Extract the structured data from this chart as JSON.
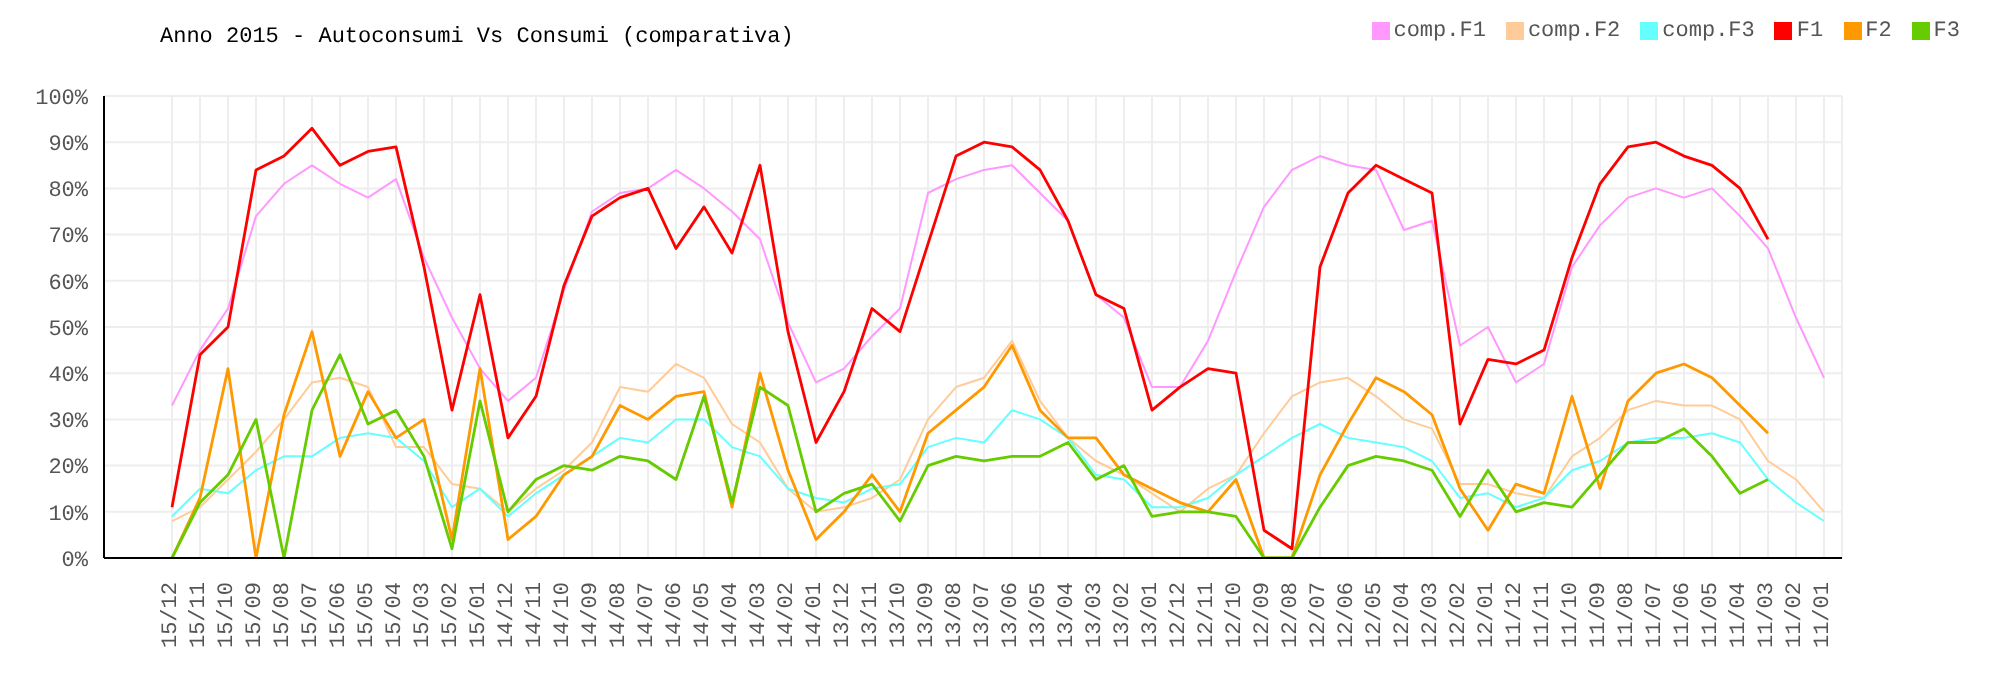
{
  "chart_data": {
    "type": "line",
    "title": "Anno 2015 - Autoconsumi Vs Consumi (comparativa)",
    "categories": [
      "15/12",
      "15/11",
      "15/10",
      "15/09",
      "15/08",
      "15/07",
      "15/06",
      "15/05",
      "15/04",
      "15/03",
      "15/02",
      "15/01",
      "14/12",
      "14/11",
      "14/10",
      "14/09",
      "14/08",
      "14/07",
      "14/06",
      "14/05",
      "14/04",
      "14/03",
      "14/02",
      "14/01",
      "13/12",
      "13/11",
      "13/10",
      "13/09",
      "13/08",
      "13/07",
      "13/06",
      "13/05",
      "13/04",
      "13/03",
      "13/02",
      "13/01",
      "12/12",
      "12/11",
      "12/10",
      "12/09",
      "12/08",
      "12/07",
      "12/06",
      "12/05",
      "12/04",
      "12/03",
      "12/02",
      "12/01",
      "11/12",
      "11/11",
      "11/10",
      "11/09",
      "11/08",
      "11/07",
      "11/06",
      "11/05",
      "11/04",
      "11/03",
      "11/02",
      "11/01"
    ],
    "series": [
      {
        "name": "comp.F1",
        "color": "#ff99ff",
        "values": [
          33,
          45,
          54,
          74,
          81,
          85,
          81,
          78,
          82,
          65,
          52,
          41,
          34,
          39,
          58,
          75,
          79,
          80,
          84,
          80,
          75,
          69,
          51,
          38,
          41,
          48,
          54,
          79,
          82,
          84,
          85,
          79,
          73,
          57,
          52,
          37,
          37,
          47,
          62,
          76,
          84,
          87,
          85,
          84,
          71,
          73,
          46,
          50,
          38,
          42,
          63,
          72,
          78,
          80,
          78,
          80,
          74,
          67,
          52,
          39
        ]
      },
      {
        "name": "comp.F2",
        "color": "#ffcc99",
        "values": [
          8,
          11,
          17,
          23,
          30,
          38,
          39,
          37,
          24,
          24,
          16,
          15,
          10,
          15,
          19,
          25,
          37,
          36,
          42,
          39,
          29,
          25,
          15,
          10,
          11,
          13,
          17,
          30,
          37,
          39,
          47,
          34,
          26,
          21,
          18,
          14,
          10,
          15,
          18,
          27,
          35,
          38,
          39,
          35,
          30,
          28,
          16,
          16,
          14,
          13,
          22,
          26,
          32,
          34,
          33,
          33,
          30,
          21,
          17,
          10
        ]
      },
      {
        "name": "comp.F3",
        "color": "#66ffff",
        "values": [
          9,
          15,
          14,
          19,
          22,
          22,
          26,
          27,
          26,
          21,
          11,
          15,
          9,
          14,
          18,
          22,
          26,
          25,
          30,
          30,
          24,
          22,
          15,
          13,
          12,
          15,
          16,
          24,
          26,
          25,
          32,
          30,
          26,
          18,
          17,
          11,
          11,
          13,
          18,
          22,
          26,
          29,
          26,
          25,
          24,
          21,
          13,
          14,
          11,
          13,
          19,
          21,
          25,
          26,
          26,
          27,
          25,
          17,
          12,
          8
        ]
      },
      {
        "name": "F1",
        "color": "#ff0000",
        "values": [
          11,
          44,
          50,
          84,
          87,
          93,
          85,
          88,
          89,
          63,
          32,
          57,
          26,
          35,
          59,
          74,
          78,
          80,
          67,
          76,
          66,
          85,
          49,
          25,
          36,
          54,
          49,
          68,
          87,
          90,
          89,
          84,
          73,
          57,
          54,
          32,
          37,
          41,
          40,
          6,
          2,
          63,
          79,
          85,
          82,
          79,
          29,
          43,
          42,
          45,
          65,
          81,
          89,
          90,
          87,
          85,
          80,
          69,
          null,
          null
        ]
      },
      {
        "name": "F2",
        "color": "#ff9900",
        "values": [
          0,
          13,
          41,
          0,
          31,
          49,
          22,
          36,
          26,
          30,
          4,
          41,
          4,
          9,
          18,
          22,
          33,
          30,
          35,
          36,
          11,
          40,
          19,
          4,
          10,
          18,
          10,
          27,
          32,
          37,
          46,
          32,
          26,
          26,
          18,
          15,
          12,
          10,
          17,
          0,
          0,
          18,
          29,
          39,
          36,
          31,
          15,
          6,
          16,
          14,
          35,
          15,
          34,
          40,
          42,
          39,
          33,
          27,
          null,
          null
        ]
      },
      {
        "name": "F3",
        "color": "#66cc00",
        "values": [
          0,
          12,
          18,
          30,
          0,
          32,
          44,
          29,
          32,
          22,
          2,
          34,
          10,
          17,
          20,
          19,
          22,
          21,
          17,
          35,
          12,
          37,
          33,
          10,
          14,
          16,
          8,
          20,
          22,
          21,
          22,
          22,
          25,
          17,
          20,
          9,
          10,
          10,
          9,
          0,
          0,
          11,
          20,
          22,
          21,
          19,
          9,
          19,
          10,
          12,
          11,
          18,
          25,
          25,
          28,
          22,
          14,
          17,
          null,
          null
        ]
      }
    ],
    "ylim": [
      0,
      100
    ],
    "yticks": [
      {
        "value": 0,
        "label": "0%"
      },
      {
        "value": 10,
        "label": "10%"
      },
      {
        "value": 20,
        "label": "20%"
      },
      {
        "value": 30,
        "label": "30%"
      },
      {
        "value": 40,
        "label": "40%"
      },
      {
        "value": 50,
        "label": "50%"
      },
      {
        "value": 60,
        "label": "60%"
      },
      {
        "value": 70,
        "label": "70%"
      },
      {
        "value": 80,
        "label": "80%"
      },
      {
        "value": 90,
        "label": "90%"
      },
      {
        "value": 100,
        "label": "100%"
      }
    ],
    "grid": true,
    "legend": "top right",
    "marker": "none",
    "line_style": "solid"
  }
}
